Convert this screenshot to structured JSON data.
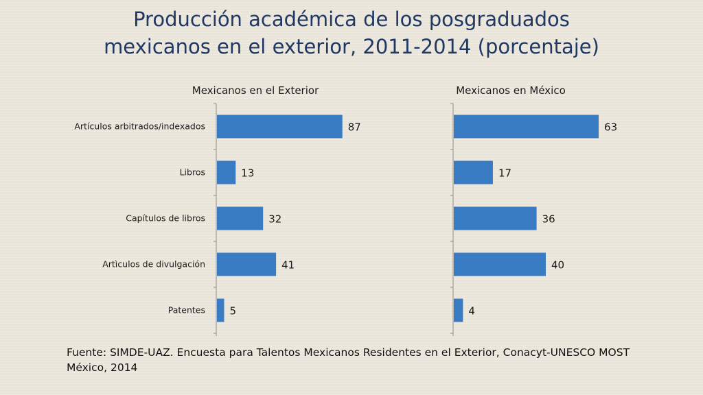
{
  "title": {
    "line1": "Producción académica de los posgraduados",
    "line2": "mexicanos en el exterior, 2011-2014 (porcentaje)"
  },
  "source": {
    "line1": "Fuente: SIMDE-UAZ. Encuesta para Talentos Mexicanos Residentes en el Exterior, Conacyt-UNESCO MOST",
    "line2": "México, 2014"
  },
  "colors": {
    "bar": "#3a7cc4",
    "axis": "#8c8c8c",
    "title": "#1f3864",
    "text": "#1a1a1a"
  },
  "chart_data": [
    {
      "type": "bar",
      "orientation": "horizontal",
      "title": "Mexicanos en el Exterior",
      "categories": [
        "Artículos arbitrados/indexados",
        "Libros",
        "Capítulos de libros",
        "Artìculos de divulgación",
        "Patentes"
      ],
      "values": [
        87,
        13,
        32,
        41,
        5
      ],
      "data_labels": true,
      "grid": false
    },
    {
      "type": "bar",
      "orientation": "horizontal",
      "title": "Mexicanos en México",
      "categories": [
        "Artículos arbitrados/indexados",
        "Libros",
        "Capítulos de libros",
        "Artìculos de divulgación",
        "Patentes"
      ],
      "values": [
        63,
        17,
        36,
        40,
        4
      ],
      "data_labels": true,
      "grid": false
    }
  ]
}
